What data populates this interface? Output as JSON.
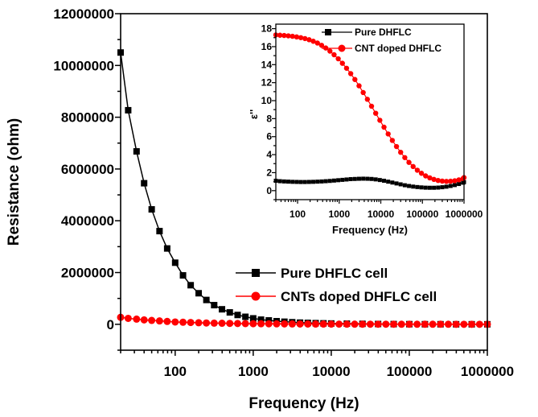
{
  "chart_data": [
    {
      "type": "line",
      "xlabel": "Frequency (Hz)",
      "ylabel": "Resistance (ohm)",
      "xscale": "log",
      "xlim": [
        20,
        1000000
      ],
      "ylim": [
        -1000000,
        12000000
      ],
      "x_ticks": [
        "100",
        "1000",
        "10000",
        "100000",
        "1000000"
      ],
      "y_ticks": [
        "0",
        "2000000",
        "4000000",
        "6000000",
        "8000000",
        "10000000",
        "12000000"
      ],
      "legend_position": "bottom-right",
      "series": [
        {
          "name": "Pure DHFLC cell",
          "color": "#000000",
          "marker": "square",
          "x": [
            20,
            25,
            32,
            40,
            50,
            63,
            79,
            100,
            126,
            158,
            200,
            251,
            316,
            398,
            501,
            631,
            794,
            1000,
            1259,
            1585,
            1995,
            2512,
            3162,
            3981,
            5012,
            6310,
            7943,
            10000,
            15849,
            25119,
            39811,
            63096,
            100000,
            158489,
            251189,
            398107,
            630957,
            1000000
          ],
          "y": [
            10500000,
            8270000,
            6680000,
            5450000,
            4440000,
            3600000,
            2930000,
            2380000,
            1890000,
            1510000,
            1200000,
            940000,
            740000,
            580000,
            460000,
            360000,
            290000,
            230000,
            180000,
            150000,
            120000,
            100000,
            80000,
            65000,
            55000,
            45000,
            38000,
            32000,
            25000,
            18000,
            12000,
            8000,
            5000,
            3000,
            2000,
            1500,
            1000,
            500
          ]
        },
        {
          "name": "CNTs doped DHFLC cell",
          "color": "#ff0000",
          "marker": "circle",
          "x": [
            20,
            25,
            32,
            40,
            50,
            63,
            79,
            100,
            126,
            158,
            200,
            251,
            316,
            398,
            501,
            631,
            794,
            1000,
            1259,
            1585,
            1995,
            2512,
            3162,
            3981,
            5012,
            6310,
            7943,
            10000,
            12589,
            15849,
            19953,
            25119,
            31623,
            39811,
            50119,
            63096,
            79433,
            100000,
            125893,
            158489,
            199526,
            251189,
            316228,
            398107,
            501187,
            630957,
            794328,
            1000000
          ],
          "y": [
            270000,
            230000,
            200000,
            170000,
            150000,
            130000,
            110000,
            90000,
            80000,
            70000,
            60000,
            50000,
            45000,
            40000,
            35000,
            30000,
            27000,
            24000,
            21000,
            19000,
            17000,
            15000,
            13000,
            12000,
            11000,
            10000,
            9000,
            8000,
            7000,
            6000,
            5500,
            5000,
            4500,
            4000,
            3500,
            3000,
            2500,
            2000,
            1800,
            1600,
            1400,
            1200,
            1000,
            800,
            600,
            400,
            200,
            0
          ]
        }
      ]
    },
    {
      "type": "line",
      "xlabel": "Frequency (Hz)",
      "ylabel": "ε''",
      "xscale": "log",
      "xlim": [
        30,
        1000000
      ],
      "ylim": [
        -1,
        18.5
      ],
      "x_ticks": [
        "100",
        "1000",
        "10000",
        "100000",
        "1000000"
      ],
      "y_ticks": [
        "0",
        "2",
        "4",
        "6",
        "8",
        "10",
        "12",
        "14",
        "16",
        "18"
      ],
      "legend_position": "top-right",
      "series": [
        {
          "name": "Pure DHFLC",
          "color": "#000000",
          "marker": "square",
          "x": [
            30,
            37.8,
            47.6,
            59.9,
            75.4,
            94.9,
            119.5,
            150.4,
            189.3,
            238.3,
            300,
            377.7,
            475.5,
            598.6,
            753.6,
            948.7,
            1194,
            1503,
            1893,
            2383,
            3000,
            3777,
            4755,
            5986,
            7536,
            9487,
            11943,
            15035,
            18929,
            23830,
            30000,
            37768,
            47547,
            59858,
            75357,
            94868,
            119432,
            150354,
            189284,
            238293,
            300000,
            377678,
            475468,
            598577,
            753563,
            948683,
            1000000
          ],
          "y": [
            1.1,
            1.05,
            1.02,
            1.0,
            0.98,
            0.97,
            0.96,
            0.96,
            0.97,
            0.98,
            1.0,
            1.02,
            1.05,
            1.08,
            1.12,
            1.16,
            1.2,
            1.24,
            1.28,
            1.3,
            1.32,
            1.33,
            1.32,
            1.3,
            1.25,
            1.18,
            1.1,
            1.0,
            0.9,
            0.8,
            0.7,
            0.6,
            0.52,
            0.45,
            0.4,
            0.36,
            0.33,
            0.32,
            0.32,
            0.34,
            0.38,
            0.44,
            0.52,
            0.62,
            0.74,
            0.88,
            0.95
          ]
        },
        {
          "name": "CNT doped DHFLC",
          "color": "#ff0000",
          "marker": "circle",
          "x": [
            30,
            37.8,
            47.6,
            59.9,
            75.4,
            94.9,
            119.5,
            150.4,
            189.3,
            238.3,
            300,
            377.7,
            475.5,
            598.6,
            753.6,
            948.7,
            1194,
            1503,
            1893,
            2383,
            3000,
            3777,
            4755,
            5986,
            7536,
            9487,
            11943,
            15035,
            18929,
            23830,
            30000,
            37768,
            47547,
            59858,
            75357,
            94868,
            119432,
            150354,
            189284,
            238293,
            300000,
            377678,
            475468,
            598577,
            753563,
            948683,
            1000000
          ],
          "y": [
            17.3,
            17.27,
            17.24,
            17.2,
            17.15,
            17.08,
            17.0,
            16.9,
            16.77,
            16.6,
            16.4,
            16.15,
            15.85,
            15.5,
            15.1,
            14.65,
            14.15,
            13.6,
            13.0,
            12.35,
            11.65,
            10.9,
            10.15,
            9.38,
            8.6,
            7.82,
            7.05,
            6.3,
            5.58,
            4.9,
            4.26,
            3.67,
            3.14,
            2.68,
            2.27,
            1.93,
            1.64,
            1.42,
            1.25,
            1.13,
            1.06,
            1.03,
            1.05,
            1.1,
            1.2,
            1.35,
            1.45
          ]
        }
      ]
    }
  ]
}
